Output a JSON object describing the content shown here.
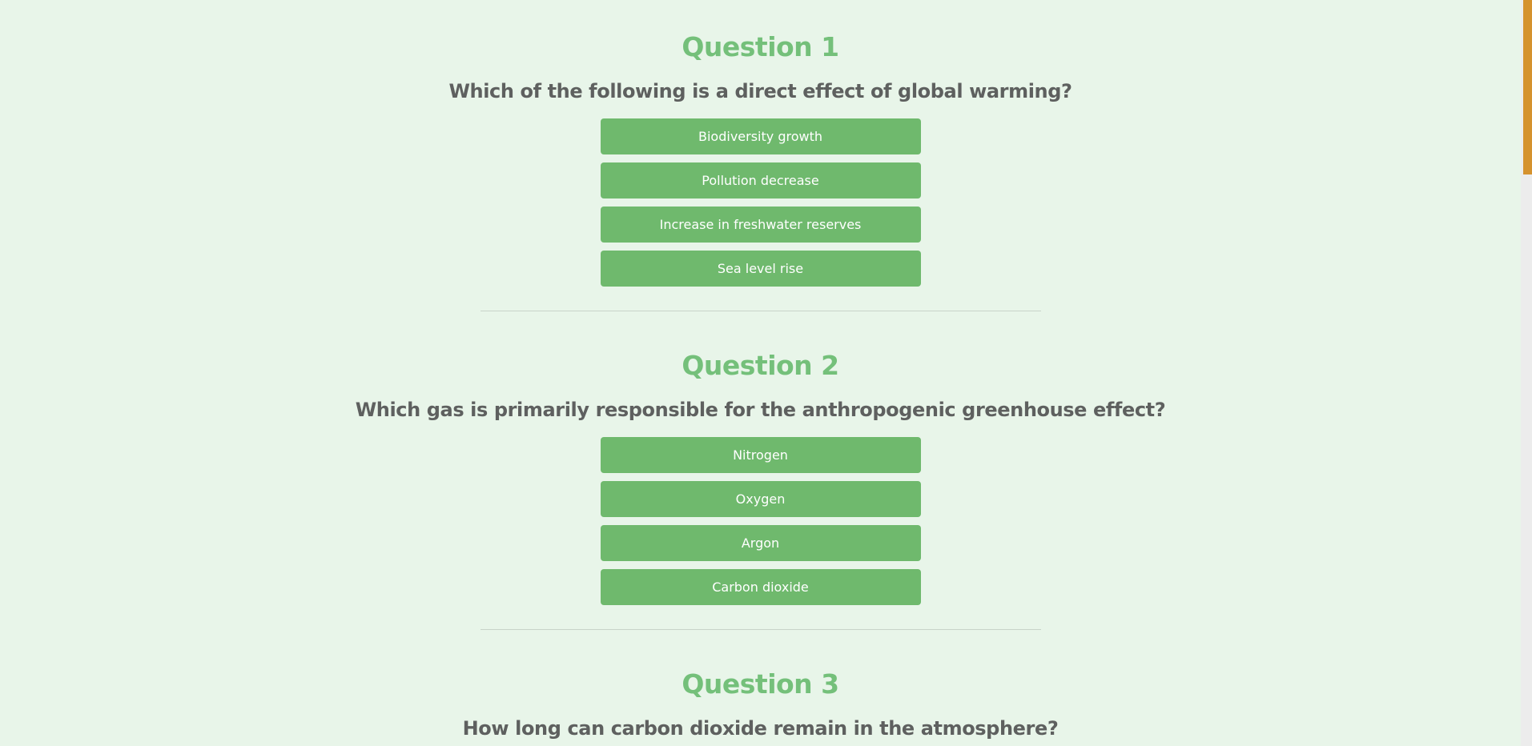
{
  "questions": [
    {
      "title": "Question 1",
      "text": "Which of the following is a direct effect of global warming?",
      "options": [
        "Biodiversity growth",
        "Pollution decrease",
        "Increase in freshwater reserves",
        "Sea level rise"
      ]
    },
    {
      "title": "Question 2",
      "text": "Which gas is primarily responsible for the anthropogenic greenhouse effect?",
      "options": [
        "Nitrogen",
        "Oxygen",
        "Argon",
        "Carbon dioxide"
      ]
    },
    {
      "title": "Question 3",
      "text": "How long can carbon dioxide remain in the atmosphere?"
    }
  ],
  "colors": {
    "background": "#e8f5e9",
    "title": "#74c07a",
    "question_text": "#5e605f",
    "button": "#6fb96d",
    "button_text": "#ffffff",
    "scrollbar_thumb": "#d5922e"
  }
}
